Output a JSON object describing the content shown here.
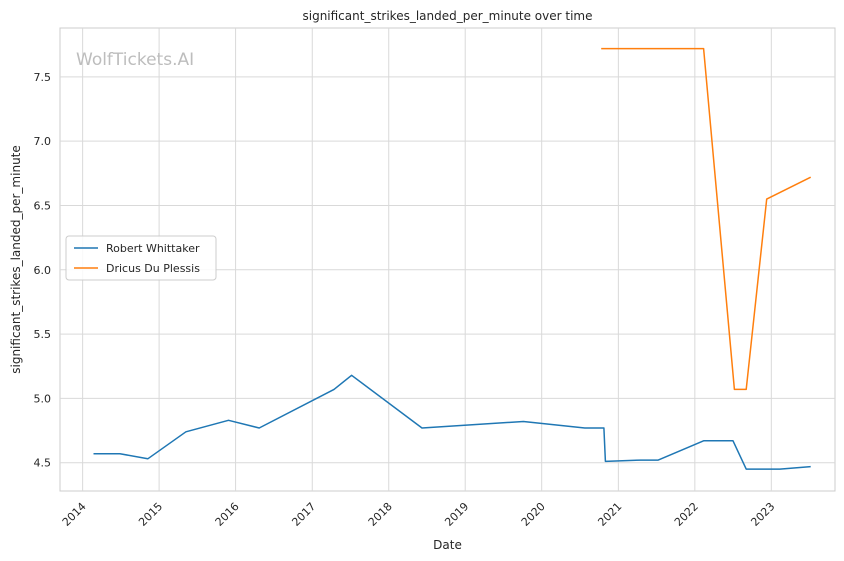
{
  "chart_data": {
    "type": "line",
    "title": "significant_strikes_landed_per_minute over time",
    "xlabel": "Date",
    "ylabel": "significant_strikes_landed_per_minute",
    "watermark": "WolfTickets.AI",
    "x_ticks": [
      "2014",
      "2015",
      "2016",
      "2017",
      "2018",
      "2019",
      "2020",
      "2021",
      "2022",
      "2023"
    ],
    "y_ticks": [
      "4.5",
      "5.0",
      "5.5",
      "6.0",
      "6.5",
      "7.0",
      "7.5"
    ],
    "xlim": [
      "2013-09-15",
      "2023-11-01"
    ],
    "ylim": [
      4.28,
      7.88
    ],
    "grid": true,
    "legend_position": "center-left",
    "series": [
      {
        "name": "Robert Whittaker",
        "color": "#1f77b4",
        "points": [
          [
            "2014-02-22",
            4.57
          ],
          [
            "2014-06-28",
            4.57
          ],
          [
            "2014-11-08",
            4.53
          ],
          [
            "2015-05-09",
            4.74
          ],
          [
            "2015-11-28",
            4.83
          ],
          [
            "2016-04-23",
            4.77
          ],
          [
            "2017-04-15",
            5.07
          ],
          [
            "2017-07-08",
            5.18
          ],
          [
            "2018-06-09",
            4.77
          ],
          [
            "2019-10-06",
            4.82
          ],
          [
            "2020-07-25",
            4.77
          ],
          [
            "2020-10-24",
            4.77
          ],
          [
            "2020-10-31",
            4.51
          ],
          [
            "2021-04-17",
            4.52
          ],
          [
            "2021-07-10",
            4.52
          ],
          [
            "2022-02-12",
            4.67
          ],
          [
            "2022-07-02",
            4.67
          ],
          [
            "2022-09-03",
            4.45
          ],
          [
            "2023-02-11",
            4.45
          ],
          [
            "2023-07-08",
            4.47
          ]
        ]
      },
      {
        "name": "Dricus Du Plessis",
        "color": "#ff7f0e",
        "points": [
          [
            "2020-10-11",
            7.72
          ],
          [
            "2022-02-12",
            7.72
          ],
          [
            "2022-07-09",
            5.07
          ],
          [
            "2022-09-03",
            5.07
          ],
          [
            "2022-12-10",
            6.55
          ],
          [
            "2023-07-08",
            6.72
          ]
        ]
      }
    ]
  }
}
